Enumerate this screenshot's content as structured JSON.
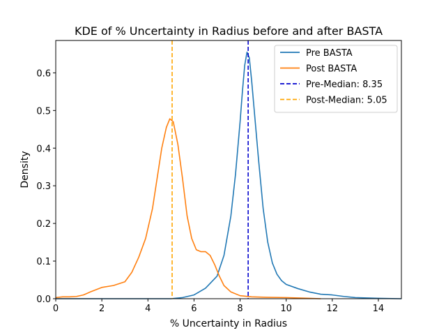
{
  "chart_data": {
    "type": "line",
    "title": "KDE of % Uncertainty in Radius before and after BASTA",
    "xlabel": "% Uncertainty in Radius",
    "ylabel": "Density",
    "xlim": [
      0,
      15
    ],
    "ylim": [
      0,
      0.686
    ],
    "xticks": [
      0,
      2,
      4,
      6,
      8,
      10,
      12,
      14
    ],
    "yticks": [
      0.0,
      0.1,
      0.2,
      0.3,
      0.4,
      0.5,
      0.6
    ],
    "grid": false,
    "legend_position": "top-right",
    "series": [
      {
        "name": "Pre BASTA",
        "color": "#1f77b4",
        "x": [
          0,
          5.0,
          5.5,
          6.0,
          6.5,
          7.0,
          7.3,
          7.6,
          7.8,
          8.0,
          8.1,
          8.2,
          8.3,
          8.4,
          8.5,
          8.6,
          8.8,
          9.0,
          9.2,
          9.4,
          9.6,
          9.8,
          10.0,
          10.5,
          11.0,
          11.5,
          12.0,
          12.5,
          13.0,
          14.0,
          15.0
        ],
        "y": [
          0,
          0.0,
          0.003,
          0.01,
          0.028,
          0.06,
          0.115,
          0.22,
          0.33,
          0.47,
          0.55,
          0.62,
          0.655,
          0.64,
          0.58,
          0.51,
          0.37,
          0.24,
          0.15,
          0.095,
          0.065,
          0.048,
          0.038,
          0.027,
          0.018,
          0.012,
          0.01,
          0.006,
          0.003,
          0.001,
          0.0
        ]
      },
      {
        "name": "Post BASTA",
        "color": "#ff7f0e",
        "x": [
          0,
          0.3,
          0.6,
          0.9,
          1.2,
          1.5,
          2.0,
          2.5,
          3.0,
          3.3,
          3.6,
          3.9,
          4.2,
          4.4,
          4.6,
          4.8,
          4.95,
          5.1,
          5.3,
          5.5,
          5.7,
          5.9,
          6.1,
          6.3,
          6.5,
          6.7,
          6.9,
          7.1,
          7.3,
          7.6,
          8.0,
          8.5,
          9.0,
          10.0,
          11.0,
          11.5
        ],
        "y": [
          0.003,
          0.005,
          0.005,
          0.006,
          0.01,
          0.018,
          0.03,
          0.035,
          0.045,
          0.07,
          0.11,
          0.16,
          0.24,
          0.32,
          0.4,
          0.455,
          0.478,
          0.47,
          0.41,
          0.32,
          0.22,
          0.16,
          0.13,
          0.125,
          0.125,
          0.115,
          0.09,
          0.06,
          0.035,
          0.018,
          0.008,
          0.005,
          0.004,
          0.003,
          0.001,
          0.0
        ]
      }
    ],
    "reference_lines": [
      {
        "name": "Pre-Median: 8.35",
        "x": 8.35,
        "color": "#0000cd",
        "style": "dashed"
      },
      {
        "name": "Post-Median: 5.05",
        "x": 5.05,
        "color": "#ffa500",
        "style": "dashed"
      }
    ]
  }
}
